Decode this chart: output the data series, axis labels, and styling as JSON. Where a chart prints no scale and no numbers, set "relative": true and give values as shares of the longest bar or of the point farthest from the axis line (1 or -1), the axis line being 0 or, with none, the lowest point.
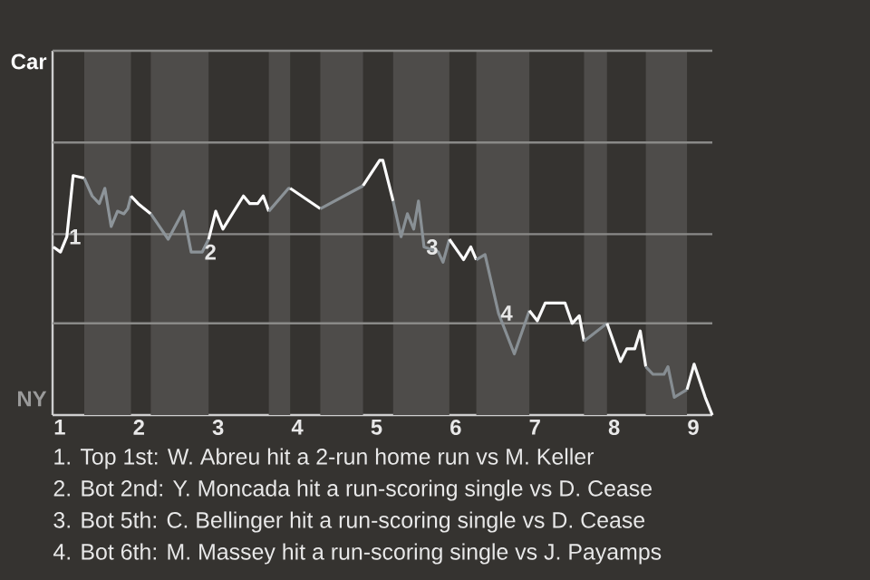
{
  "chart_data": {
    "type": "line",
    "relative": true,
    "xlim": [
      0.91,
      9.24
    ],
    "xticks": [
      1,
      2,
      3,
      4,
      5,
      6,
      7,
      8,
      9
    ],
    "line_style": "solid",
    "series": [
      {
        "color": "#ffffff",
        "x": [
          0.92,
          1.01,
          1.09,
          1.17,
          1.31
        ],
        "values": [
          0.66,
          0.64,
          0.7,
          0.94,
          0.93
        ]
      },
      {
        "color": "#8d9499",
        "x": [
          1.31,
          1.41,
          1.5,
          1.57,
          1.65,
          1.73,
          1.81,
          1.86,
          1.9
        ],
        "values": [
          0.93,
          0.86,
          0.83,
          0.89,
          0.74,
          0.8,
          0.79,
          0.81,
          0.86
        ]
      },
      {
        "color": "#fefefe",
        "x": [
          1.9,
          1.99,
          2.15
        ],
        "values": [
          0.86,
          0.83,
          0.79
        ]
      },
      {
        "color": "#8c9398",
        "x": [
          2.15,
          2.37,
          2.56,
          2.66,
          2.8,
          2.88
        ],
        "values": [
          0.79,
          0.69,
          0.8,
          0.64,
          0.64,
          0.69
        ]
      },
      {
        "color": "#fdfdfd",
        "x": [
          2.88,
          2.97,
          3.06,
          3.32,
          3.4,
          3.5,
          3.57,
          3.64
        ],
        "values": [
          0.69,
          0.8,
          0.73,
          0.86,
          0.83,
          0.83,
          0.86,
          0.8
        ]
      },
      {
        "color": "#8b9297",
        "x": [
          3.64,
          3.89,
          3.91
        ],
        "values": [
          0.8,
          0.89,
          0.89
        ]
      },
      {
        "color": "#fcfcfc",
        "x": [
          3.91,
          4.29
        ],
        "values": [
          0.89,
          0.81
        ]
      },
      {
        "color": "#8a9196",
        "x": [
          4.29,
          4.83
        ],
        "values": [
          0.81,
          0.9
        ]
      },
      {
        "color": "#fbfbfb",
        "x": [
          4.83,
          5.04,
          5.08,
          5.21
        ],
        "values": [
          0.9,
          1,
          1,
          0.84
        ]
      },
      {
        "color": "#899095",
        "x": [
          5.21,
          5.31,
          5.39,
          5.47,
          5.53,
          5.6,
          5.78,
          5.84,
          5.92
        ],
        "values": [
          0.84,
          0.7,
          0.79,
          0.73,
          0.84,
          0.66,
          0.64,
          0.6,
          0.69
        ]
      },
      {
        "color": "#fafafa",
        "x": [
          5.92,
          6.1,
          6.19,
          6.26
        ],
        "values": [
          0.69,
          0.61,
          0.66,
          0.61
        ]
      },
      {
        "color": "#888f94",
        "x": [
          6.26,
          6.37,
          6.54,
          6.74,
          6.93
        ],
        "values": [
          0.61,
          0.63,
          0.4,
          0.24,
          0.41
        ]
      },
      {
        "color": "#f9f9f9",
        "x": [
          6.93,
          7.03,
          7.13,
          7.38,
          7.47,
          7.56,
          7.62
        ],
        "values": [
          0.41,
          0.37,
          0.44,
          0.44,
          0.36,
          0.39,
          0.29
        ]
      },
      {
        "color": "#878e93",
        "x": [
          7.62,
          7.91
        ],
        "values": [
          0.29,
          0.36
        ]
      },
      {
        "color": "#f8f8f8",
        "x": [
          7.91,
          8.08,
          8.16,
          8.26,
          8.33,
          8.4
        ],
        "values": [
          0.36,
          0.21,
          0.26,
          0.26,
          0.33,
          0.19
        ]
      },
      {
        "color": "#868d92",
        "x": [
          8.4,
          8.49,
          8.63,
          8.68,
          8.76,
          8.92
        ],
        "values": [
          0.19,
          0.16,
          0.16,
          0.19,
          0.07,
          0.1
        ]
      },
      {
        "color": "#f7f7f7",
        "x": [
          8.92,
          9.01,
          9.15,
          9.24
        ],
        "values": [
          0.1,
          0.2,
          0.07,
          0
        ]
      }
    ],
    "ref_lines": [
      {
        "axis": "y",
        "value": 0.36,
        "color": "#8a8a88"
      },
      {
        "axis": "y",
        "value": 0.71,
        "color": "#8a8a88"
      },
      {
        "axis": "y",
        "value": 1.07,
        "color": "#8a8a88"
      },
      {
        "axis": "y",
        "value": 1.43,
        "color": "#8a8a88"
      }
    ],
    "bands": [
      {
        "axis": "x",
        "from": 1.31,
        "to": 1.9,
        "color": "#4e4c4a"
      },
      {
        "axis": "x",
        "from": 2.15,
        "to": 2.88,
        "color": "#4e4c4a"
      },
      {
        "axis": "x",
        "from": 3.64,
        "to": 3.91,
        "color": "#4e4c4a"
      },
      {
        "axis": "x",
        "from": 4.29,
        "to": 4.83,
        "color": "#4e4c4a"
      },
      {
        "axis": "x",
        "from": 5.21,
        "to": 5.92,
        "color": "#4e4c4a"
      },
      {
        "axis": "x",
        "from": 6.26,
        "to": 6.93,
        "color": "#4e4c4a"
      },
      {
        "axis": "x",
        "from": 7.62,
        "to": 7.91,
        "color": "#4e4c4a"
      },
      {
        "axis": "x",
        "from": 8.4,
        "to": 8.92,
        "color": "#4e4c4a"
      }
    ],
    "annotations": [
      {
        "text": "1",
        "x": 1.09,
        "y": 0.7
      },
      {
        "text": "2",
        "x": 2.8,
        "y": 0.64
      },
      {
        "text": "3",
        "x": 5.6,
        "y": 0.66
      },
      {
        "text": "4",
        "x": 6.54,
        "y": 0.4
      },
      "Car",
      "NY",
      "1. Top 1st: W. Abreu hit a 2-run home run vs M. Keller",
      "2. Bot 2nd: Y. Moncada hit a run-scoring single vs D. Cease",
      "3. Bot 5th: C. Bellinger hit a run-scoring single vs D. Cease",
      "4. Bot 6th: M. Massey hit a run-scoring single vs J. Payamps"
    ]
  }
}
